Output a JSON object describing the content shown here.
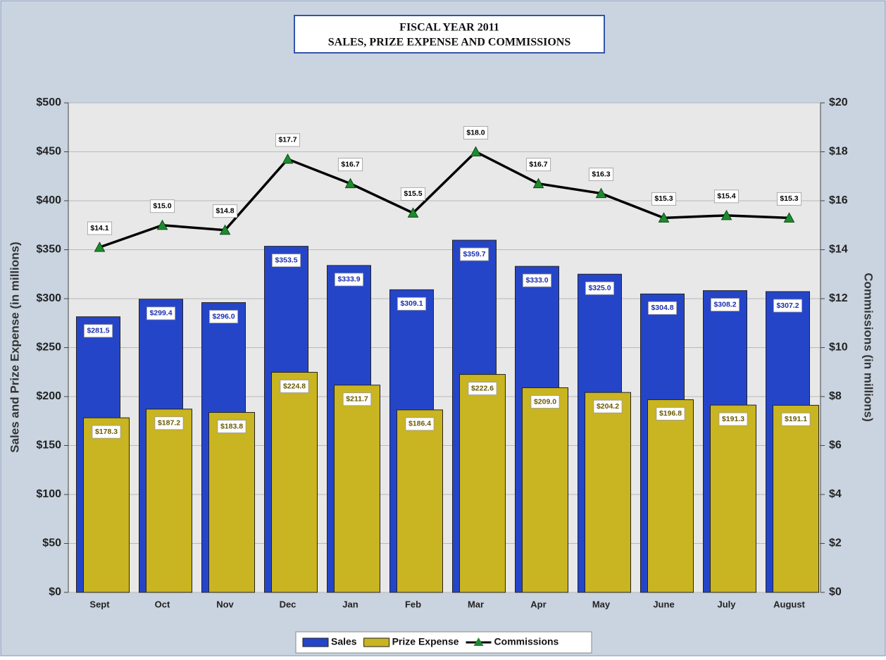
{
  "chart_data": {
    "type": "bar",
    "title": "FISCAL YEAR 2011",
    "subtitle": "SALES, PRIZE EXPENSE AND COMMISSIONS",
    "ylabel": "Sales and Prize Expense (in millions)",
    "y2label": "Commissions (in millions)",
    "categories": [
      "Sept",
      "Oct",
      "Nov",
      "Dec",
      "Jan",
      "Feb",
      "Mar",
      "Apr",
      "May",
      "June",
      "July",
      "August"
    ],
    "series": [
      {
        "name": "Sales",
        "type": "bar",
        "color": "#2545c8",
        "values": [
          281.5,
          299.4,
          296.0,
          353.5,
          333.9,
          309.1,
          359.7,
          333.0,
          325.0,
          304.8,
          308.2,
          307.2
        ],
        "value_labels": [
          "$281.5",
          "$299.4",
          "$296.0",
          "$353.5",
          "$333.9",
          "$309.1",
          "$359.7",
          "$333.0",
          "$325.0",
          "$304.8",
          "$308.2",
          "$307.2"
        ]
      },
      {
        "name": "Prize Expense",
        "type": "bar",
        "color": "#c9b421",
        "values": [
          178.3,
          187.2,
          183.8,
          224.8,
          211.7,
          186.4,
          222.6,
          209.0,
          204.2,
          196.8,
          191.3,
          191.1
        ],
        "value_labels": [
          "$178.3",
          "$187.2",
          "$183.8",
          "$224.8",
          "$211.7",
          "$186.4",
          "$222.6",
          "$209.0",
          "$204.2",
          "$196.8",
          "$191.3",
          "$191.1"
        ]
      },
      {
        "name": "Commissions",
        "type": "line",
        "axis": "y2",
        "color": "#000000",
        "marker_color": "#1e8a2e",
        "values": [
          14.1,
          15.0,
          14.8,
          17.7,
          16.7,
          15.5,
          18.0,
          16.7,
          16.3,
          15.3,
          15.4,
          15.3
        ],
        "value_labels": [
          "$14.1",
          "$15.0",
          "$14.8",
          "$17.7",
          "$16.7",
          "$15.5",
          "$18.0",
          "$16.7",
          "$16.3",
          "$15.3",
          "$15.4",
          "$15.3"
        ]
      }
    ],
    "ylim": [
      0,
      500
    ],
    "yticks": [
      {
        "value": 0,
        "label": "$0"
      },
      {
        "value": 50,
        "label": "$50"
      },
      {
        "value": 100,
        "label": "$100"
      },
      {
        "value": 150,
        "label": "$150"
      },
      {
        "value": 200,
        "label": "$200"
      },
      {
        "value": 250,
        "label": "$250"
      },
      {
        "value": 300,
        "label": "$300"
      },
      {
        "value": 350,
        "label": "$350"
      },
      {
        "value": 400,
        "label": "$400"
      },
      {
        "value": 450,
        "label": "$450"
      },
      {
        "value": 500,
        "label": "$500"
      }
    ],
    "y2lim": [
      0,
      20
    ],
    "y2ticks": [
      {
        "value": 0,
        "label": "$0"
      },
      {
        "value": 2,
        "label": "$2"
      },
      {
        "value": 4,
        "label": "$4"
      },
      {
        "value": 6,
        "label": "$6"
      },
      {
        "value": 8,
        "label": "$8"
      },
      {
        "value": 10,
        "label": "$10"
      },
      {
        "value": 12,
        "label": "$12"
      },
      {
        "value": 14,
        "label": "$14"
      },
      {
        "value": 16,
        "label": "$16"
      },
      {
        "value": 18,
        "label": "$18"
      },
      {
        "value": 20,
        "label": "$20"
      }
    ],
    "grid": true,
    "legend": "bottom"
  }
}
